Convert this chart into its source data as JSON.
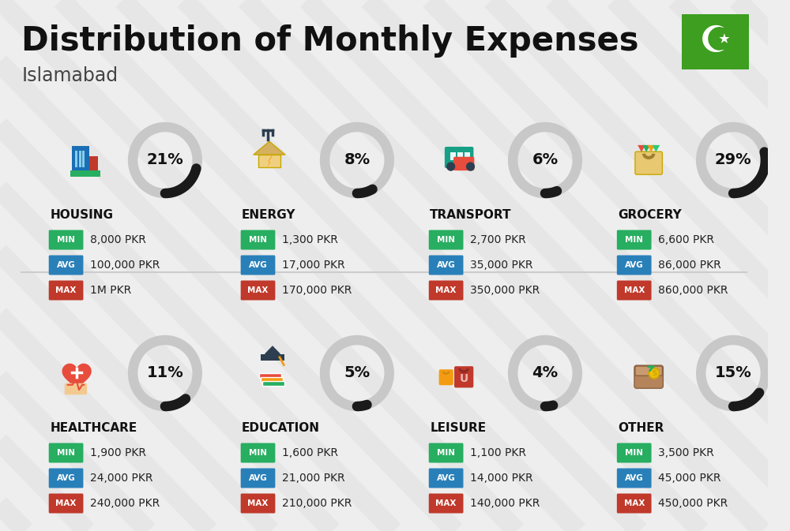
{
  "title": "Distribution of Monthly Expenses",
  "subtitle": "Islamabad",
  "background_color": "#eeeeee",
  "categories": [
    {
      "name": "HOUSING",
      "percent": 21,
      "min": "8,000 PKR",
      "avg": "100,000 PKR",
      "max": "1M PKR",
      "row": 0,
      "col": 0
    },
    {
      "name": "ENERGY",
      "percent": 8,
      "min": "1,300 PKR",
      "avg": "17,000 PKR",
      "max": "170,000 PKR",
      "row": 0,
      "col": 1
    },
    {
      "name": "TRANSPORT",
      "percent": 6,
      "min": "2,700 PKR",
      "avg": "35,000 PKR",
      "max": "350,000 PKR",
      "row": 0,
      "col": 2
    },
    {
      "name": "GROCERY",
      "percent": 29,
      "min": "6,600 PKR",
      "avg": "86,000 PKR",
      "max": "860,000 PKR",
      "row": 0,
      "col": 3
    },
    {
      "name": "HEALTHCARE",
      "percent": 11,
      "min": "1,900 PKR",
      "avg": "24,000 PKR",
      "max": "240,000 PKR",
      "row": 1,
      "col": 0
    },
    {
      "name": "EDUCATION",
      "percent": 5,
      "min": "1,600 PKR",
      "avg": "21,000 PKR",
      "max": "210,000 PKR",
      "row": 1,
      "col": 1
    },
    {
      "name": "LEISURE",
      "percent": 4,
      "min": "1,100 PKR",
      "avg": "14,000 PKR",
      "max": "140,000 PKR",
      "row": 1,
      "col": 2
    },
    {
      "name": "OTHER",
      "percent": 15,
      "min": "3,500 PKR",
      "avg": "45,000 PKR",
      "max": "450,000 PKR",
      "row": 1,
      "col": 3
    }
  ],
  "min_color": "#27ae60",
  "avg_color": "#2980b9",
  "max_color": "#c0392b",
  "arc_dark": "#1a1a1a",
  "arc_light": "#c8c8c8",
  "value_color": "#222222",
  "name_color": "#111111",
  "title_color": "#111111",
  "subtitle_color": "#444444",
  "flag_color": "#3d9e1f",
  "diag_color": "#d8d8d8",
  "sep_color": "#cccccc"
}
